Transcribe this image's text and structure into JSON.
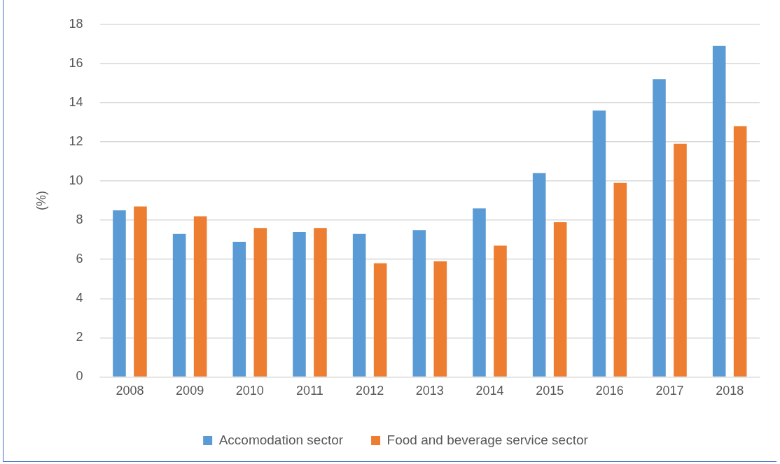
{
  "chart_data": {
    "type": "bar",
    "ylabel": "(%)",
    "categories": [
      "2008",
      "2009",
      "2010",
      "2011",
      "2012",
      "2013",
      "2014",
      "2015",
      "2016",
      "2017",
      "2018"
    ],
    "series": [
      {
        "name": "Accomodation sector",
        "color": "#5b9bd5",
        "values": [
          8.5,
          7.3,
          6.9,
          7.4,
          7.3,
          7.5,
          8.6,
          10.4,
          13.6,
          15.2,
          16.9
        ]
      },
      {
        "name": "Food and beverage service sector",
        "color": "#ed7d31",
        "values": [
          8.7,
          8.2,
          7.6,
          7.6,
          5.8,
          5.9,
          6.7,
          7.9,
          9.9,
          11.9,
          12.8
        ]
      }
    ],
    "ylim": [
      0,
      18
    ],
    "yticks": [
      0,
      2,
      4,
      6,
      8,
      10,
      12,
      14,
      16,
      18
    ],
    "grid": "y",
    "legend": "bottom"
  }
}
